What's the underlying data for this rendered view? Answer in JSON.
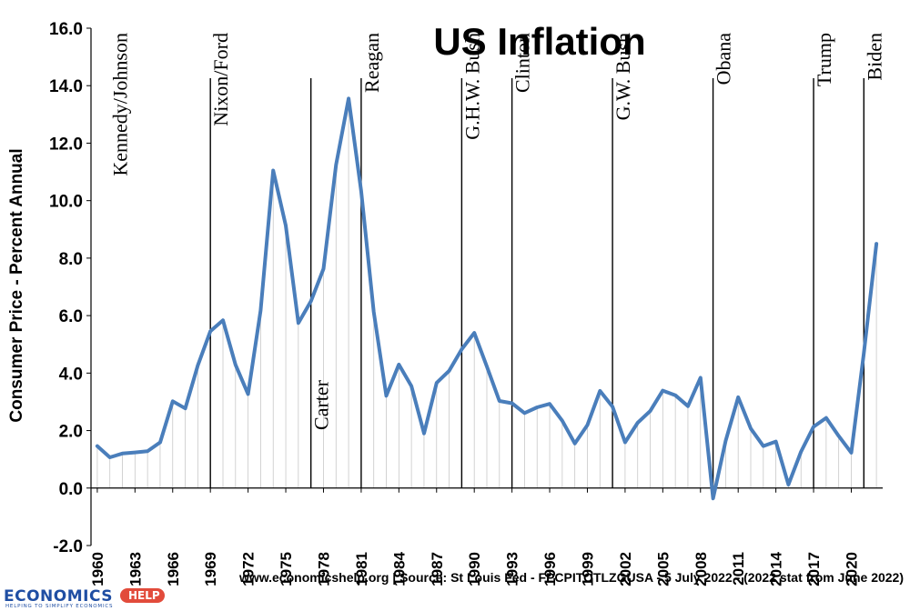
{
  "chart_data": {
    "type": "line",
    "title": "US Inflation",
    "xlabel": "",
    "ylabel": "Consumer Price - Percent Annual",
    "ylim": [
      -2.0,
      16.0
    ],
    "yticks": [
      "-2.0",
      "0.0",
      "2.0",
      "4.0",
      "6.0",
      "8.0",
      "10.0",
      "12.0",
      "14.0",
      "16.0"
    ],
    "xticks": [
      "1960",
      "1963",
      "1966",
      "1969",
      "1972",
      "1975",
      "1978",
      "1981",
      "1984",
      "1987",
      "1990",
      "1993",
      "1996",
      "1999",
      "2002",
      "2005",
      "2008",
      "2011",
      "2014",
      "2017",
      "2020"
    ],
    "grid": "vertical minor lines each year",
    "series": [
      {
        "name": "US CPI inflation",
        "color": "#4a7ebb",
        "x": [
          1960,
          1961,
          1962,
          1963,
          1964,
          1965,
          1966,
          1967,
          1968,
          1969,
          1970,
          1971,
          1972,
          1973,
          1974,
          1975,
          1976,
          1977,
          1978,
          1979,
          1980,
          1981,
          1982,
          1983,
          1984,
          1985,
          1986,
          1987,
          1988,
          1989,
          1990,
          1991,
          1992,
          1993,
          1994,
          1995,
          1996,
          1997,
          1998,
          1999,
          2000,
          2001,
          2002,
          2003,
          2004,
          2005,
          2006,
          2007,
          2008,
          2009,
          2010,
          2011,
          2012,
          2013,
          2014,
          2015,
          2016,
          2017,
          2018,
          2019,
          2020,
          2021,
          2022
        ],
        "values": [
          1.46,
          1.07,
          1.2,
          1.24,
          1.28,
          1.59,
          3.02,
          2.77,
          4.27,
          5.46,
          5.84,
          4.29,
          3.27,
          6.18,
          11.05,
          9.14,
          5.74,
          6.5,
          7.63,
          11.25,
          13.55,
          10.33,
          6.13,
          3.21,
          4.3,
          3.55,
          1.9,
          3.66,
          4.08,
          4.83,
          5.4,
          4.23,
          3.03,
          2.95,
          2.61,
          2.81,
          2.93,
          2.34,
          1.55,
          2.19,
          3.38,
          2.83,
          1.59,
          2.27,
          2.68,
          3.39,
          3.23,
          2.85,
          3.84,
          -0.36,
          1.64,
          3.16,
          2.07,
          1.46,
          1.62,
          0.12,
          1.26,
          2.13,
          2.44,
          1.81,
          1.23,
          4.7,
          8.5
        ]
      }
    ],
    "annotations": [
      {
        "text": "Kennedy/Johnson",
        "x": 1961
      },
      {
        "text": "Nixon/Ford",
        "x": 1969
      },
      {
        "text": "Carter",
        "x": 1977
      },
      {
        "text": "Reagan",
        "x": 1981
      },
      {
        "text": "G.H.W. Bush",
        "x": 1989
      },
      {
        "text": "Clinton",
        "x": 1993
      },
      {
        "text": "G.W. Bush",
        "x": 2001
      },
      {
        "text": "Obana",
        "x": 2009
      },
      {
        "text": "Trump",
        "x": 2017
      },
      {
        "text": "Biden",
        "x": 2021
      }
    ],
    "divider_years": [
      1969,
      1977,
      1981,
      1989,
      1993,
      2001,
      2009,
      2017,
      2021
    ]
  },
  "footer": {
    "source": "www.economicshelp.org | Source: St Louis Fed - FPCPITOTLZGUSA - 5 July 2022  - (2022 stat from June 2022)"
  },
  "logo": {
    "main": "ECONOMICS",
    "badge": "HELP",
    "tagline": "HELPING TO SIMPLIFY ECONOMICS"
  }
}
